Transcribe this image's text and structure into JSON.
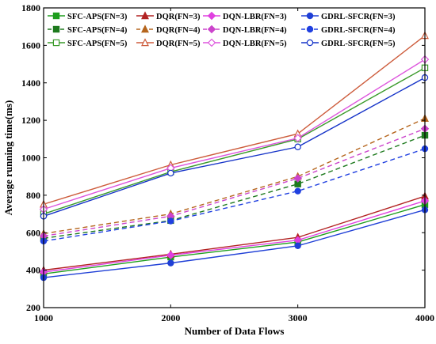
{
  "chart_data": {
    "type": "line",
    "title": "",
    "xlabel": "Number of Data Flows",
    "ylabel": "Average running time(ms)",
    "x": [
      1000,
      2000,
      3000,
      4000
    ],
    "xlim": [
      1000,
      4000
    ],
    "ylim": [
      200,
      1800
    ],
    "xticks": [
      1000,
      2000,
      3000,
      4000
    ],
    "yticks": [
      200,
      400,
      600,
      800,
      1000,
      1200,
      1400,
      1600,
      1800
    ],
    "grid": false,
    "legend_position": "top-left",
    "series": [
      {
        "name": "SFC-APS(FN=3)",
        "values": [
          380,
          470,
          550,
          750
        ],
        "color": "#1e9e1e",
        "marker": "square",
        "dash": "solid"
      },
      {
        "name": "DQR(FN=3)",
        "values": [
          400,
          485,
          575,
          795
        ],
        "color": "#b22222",
        "marker": "triangle",
        "dash": "solid"
      },
      {
        "name": "DQN-LBR(FN=3)",
        "values": [
          390,
          480,
          560,
          770
        ],
        "color": "#e040e0",
        "marker": "diamond",
        "dash": "solid"
      },
      {
        "name": "GDRL-SFCR(FN=3)",
        "values": [
          360,
          438,
          530,
          722
        ],
        "color": "#1f3fd6",
        "marker": "circle",
        "dash": "solid"
      },
      {
        "name": "SFC-APS(FN=4)",
        "values": [
          570,
          665,
          860,
          1120
        ],
        "color": "#1e7a1e",
        "marker": "square",
        "dash": "dashed"
      },
      {
        "name": "DQR(FN=4)",
        "values": [
          595,
          700,
          900,
          1210
        ],
        "color": "#b5651d",
        "marker": "triangle",
        "dash": "dashed"
      },
      {
        "name": "DQN-LBR(FN=4)",
        "values": [
          582,
          688,
          890,
          1155
        ],
        "color": "#cc44cc",
        "marker": "diamond",
        "dash": "dashed"
      },
      {
        "name": "GDRL-SFCR(FN=4)",
        "values": [
          555,
          662,
          822,
          1048
        ],
        "color": "#2040e0",
        "marker": "circle",
        "dash": "dashed"
      },
      {
        "name": "SFC-APS(FN=5)",
        "values": [
          700,
          925,
          1100,
          1480
        ],
        "color": "#3a9a2a",
        "marker": "square-open",
        "dash": "solid"
      },
      {
        "name": "DQR(FN=5)",
        "values": [
          752,
          962,
          1128,
          1652
        ],
        "color": "#cd5c3c",
        "marker": "triangle-open",
        "dash": "solid"
      },
      {
        "name": "DQN-LBR(FN=5)",
        "values": [
          725,
          945,
          1105,
          1525
        ],
        "color": "#dd55dd",
        "marker": "diamond-open",
        "dash": "solid"
      },
      {
        "name": "GDRL-SFCR(FN=5)",
        "values": [
          688,
          918,
          1058,
          1428
        ],
        "color": "#1533c8",
        "marker": "circle-open",
        "dash": "solid"
      }
    ]
  }
}
